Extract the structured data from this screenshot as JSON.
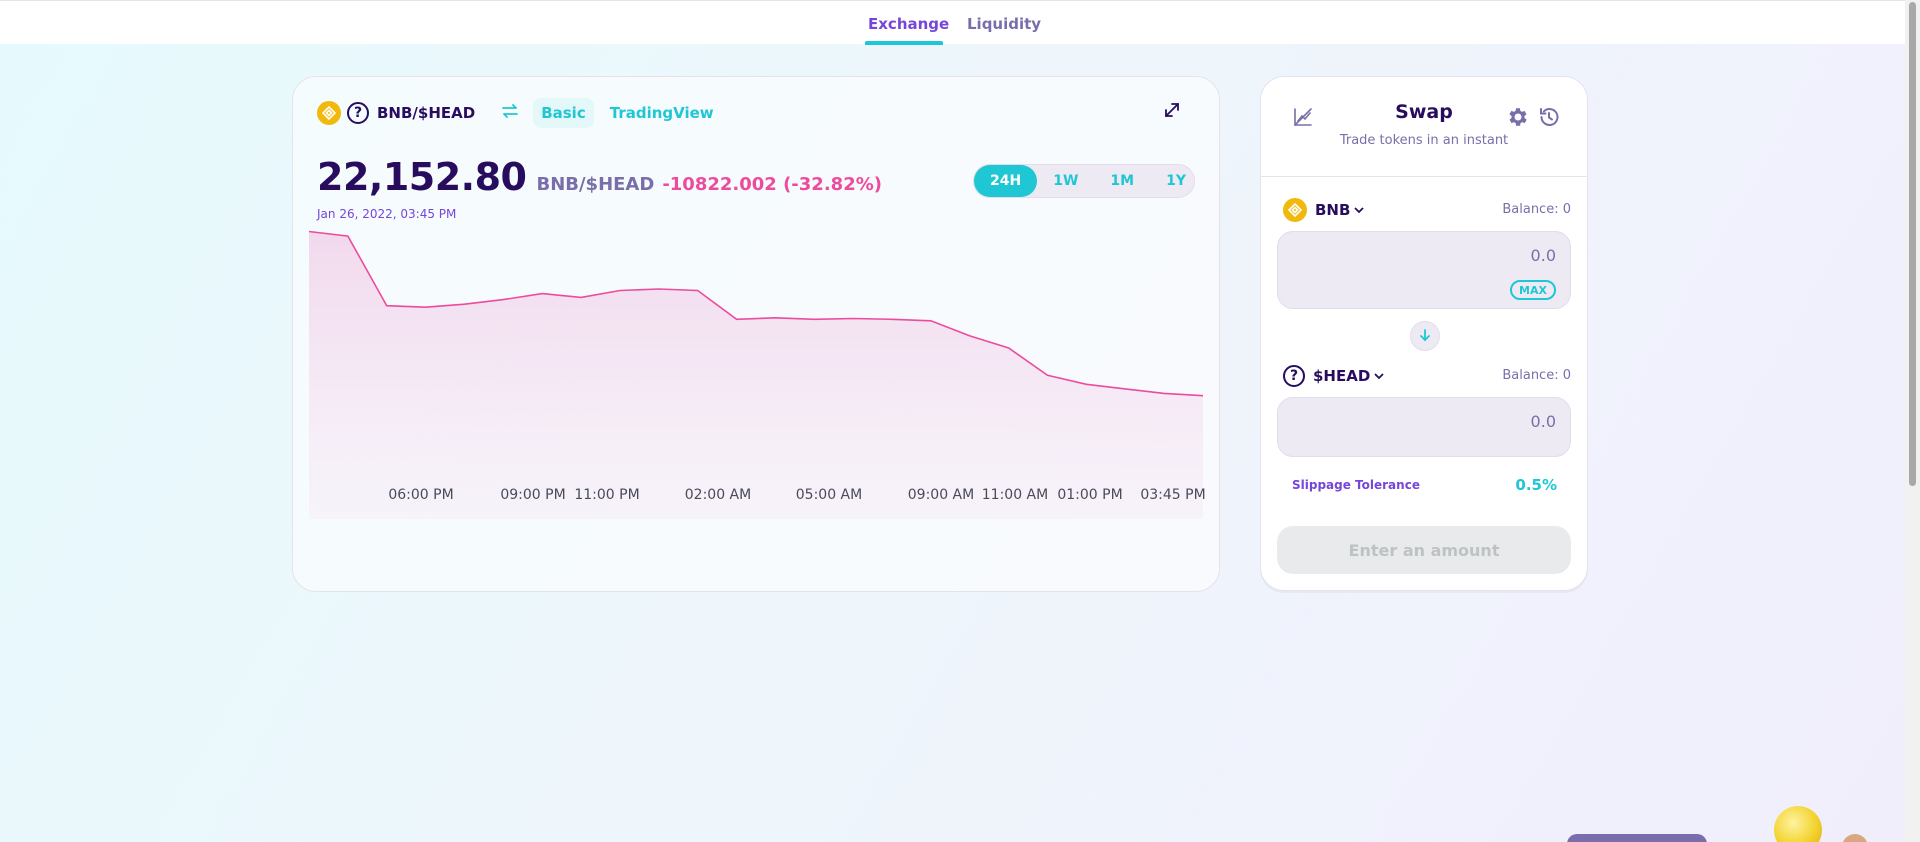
{
  "nav": {
    "tabs": [
      {
        "label": "Exchange",
        "active": true
      },
      {
        "label": "Liquidity",
        "active": false
      }
    ]
  },
  "chart_panel": {
    "pair": "BNB/$HEAD",
    "modes": [
      "Basic",
      "TradingView"
    ],
    "active_mode": "Basic",
    "price": "22,152.80",
    "price_pair": "BNB/$HEAD",
    "change": "-10822.002 (-32.82%)",
    "date": "Jan 26, 2022, 03:45 PM",
    "ranges": [
      "24H",
      "1W",
      "1M",
      "1Y"
    ],
    "active_range": "24H",
    "icons": {
      "base": "bnb-token-icon",
      "quote": "unknown-token-icon",
      "switch": "swap-arrows-icon",
      "expand": "expand-icon"
    }
  },
  "chart_data": {
    "type": "area",
    "xlabel": "",
    "ylabel": "",
    "x_ticks": [
      "06:00 PM",
      "09:00 PM",
      "11:00 PM",
      "02:00 AM",
      "05:00 AM",
      "09:00 AM",
      "11:00 AM",
      "01:00 PM",
      "03:45 PM"
    ],
    "series": [
      {
        "values": [
          33000,
          32700,
          28100,
          28000,
          28200,
          28500,
          28900,
          28650,
          29100,
          29200,
          29100,
          27200,
          27300,
          27200,
          27250,
          27200,
          27100,
          26100,
          25300,
          23500,
          22900,
          22600,
          22300,
          22152.8
        ]
      }
    ],
    "ylim": [
      14000,
      33300
    ],
    "line_color": "#ed4b9e",
    "fill_color": "#f1d7ec"
  },
  "swap": {
    "title": "Swap",
    "subtitle": "Trade tokens in an instant",
    "from": {
      "symbol": "BNB",
      "balance": "Balance: 0",
      "placeholder": "0.0",
      "max_label": "MAX"
    },
    "to": {
      "symbol": "$HEAD",
      "balance": "Balance: 0",
      "placeholder": "0.0"
    },
    "slippage_label": "Slippage Tolerance",
    "slippage_value": "0.5%",
    "submit_label": "Enter an amount",
    "icons": {
      "chart_toggle": "chart-disabled-icon",
      "settings": "gear-icon",
      "history": "history-icon",
      "switch": "arrow-down-icon"
    }
  },
  "colors": {
    "accent": "#1fc7d4",
    "primary_text": "#280d5f",
    "secondary_text": "#7a6eaa",
    "negative": "#ed4b9e",
    "purple": "#7645d9"
  }
}
